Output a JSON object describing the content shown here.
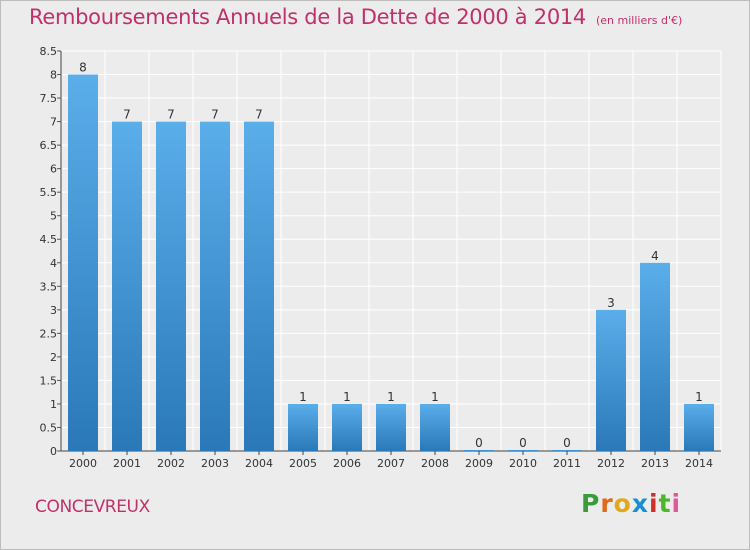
{
  "header": {
    "title": "Remboursements Annuels de la Dette de 2000 à 2014",
    "subtitle": "(en milliers d'€)"
  },
  "footer": {
    "commune": "CONCEVREUX",
    "brand": "Proxiti",
    "brand_colors": [
      "#3a9b3a",
      "#e06a1a",
      "#e0a81a",
      "#1a8fd0",
      "#d0302a",
      "#4ab82a",
      "#e05a9a"
    ]
  },
  "colors": {
    "bar_light": "#5aaeea",
    "bar_dark": "#2a78b8",
    "title": "#c0306a"
  },
  "chart_data": {
    "type": "bar",
    "categories": [
      "2000",
      "2001",
      "2002",
      "2003",
      "2004",
      "2005",
      "2006",
      "2007",
      "2008",
      "2009",
      "2010",
      "2011",
      "2012",
      "2013",
      "2014"
    ],
    "values": [
      8,
      7,
      7,
      7,
      7,
      1,
      1,
      1,
      1,
      0,
      0,
      0,
      3,
      4,
      1
    ],
    "data_labels": [
      "8",
      "7",
      "7",
      "7",
      "7",
      "1",
      "1",
      "1",
      "1",
      "0",
      "0",
      "0",
      "3",
      "4",
      "1"
    ],
    "y_ticks": [
      "0",
      "0.5",
      "1",
      "1.5",
      "2",
      "2.5",
      "3",
      "3.5",
      "4",
      "4.5",
      "5",
      "5.5",
      "6",
      "6.5",
      "7",
      "7.5",
      "8",
      "8.5"
    ],
    "ylim": [
      0,
      8.5
    ],
    "grid": true,
    "title": "Remboursements Annuels de la Dette de 2000 à 2014",
    "xlabel": "",
    "ylabel": ""
  }
}
